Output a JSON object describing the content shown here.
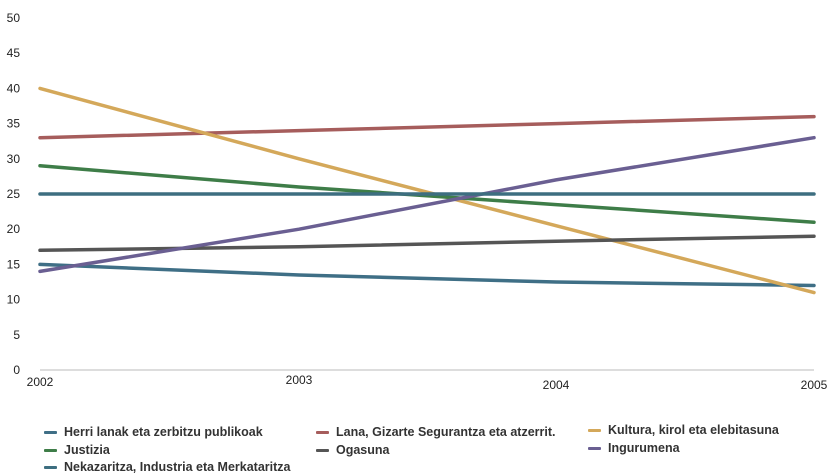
{
  "chart_data": {
    "type": "line",
    "x": [
      "2002",
      "2003",
      "2004",
      "2005"
    ],
    "ylim": [
      0,
      50
    ],
    "yticks": [
      0,
      5,
      10,
      15,
      20,
      25,
      30,
      35,
      40,
      45,
      50
    ],
    "grid": false,
    "legend_position": "bottom",
    "title": "",
    "xlabel": "",
    "ylabel": "",
    "series": [
      {
        "name": "Herri lanak eta zerbitzu publikoak",
        "color": "#3f6f86",
        "values": [
          15,
          13.5,
          12.5,
          12
        ]
      },
      {
        "name": "Lana, Gizarte Segurantza eta atzerrit.",
        "color": "#a65d5c",
        "values": [
          33,
          34,
          35,
          36
        ]
      },
      {
        "name": "Kultura, kirol eta elebitasuna",
        "color": "#d4a85a",
        "values": [
          40,
          30,
          20.5,
          11
        ]
      },
      {
        "name": "Justizia",
        "color": "#3e7d48",
        "values": [
          29,
          26,
          23.5,
          21
        ]
      },
      {
        "name": "Ogasuna",
        "color": "#555555",
        "values": [
          17,
          17.5,
          18.3,
          19
        ]
      },
      {
        "name": "Ingurumena",
        "color": "#6a5f92",
        "values": [
          14,
          20,
          27,
          33
        ]
      },
      {
        "name": "Nekazaritza, Industria eta Merkataritza",
        "color": "#3d6e80",
        "values": [
          25,
          25,
          25,
          25
        ]
      }
    ]
  }
}
